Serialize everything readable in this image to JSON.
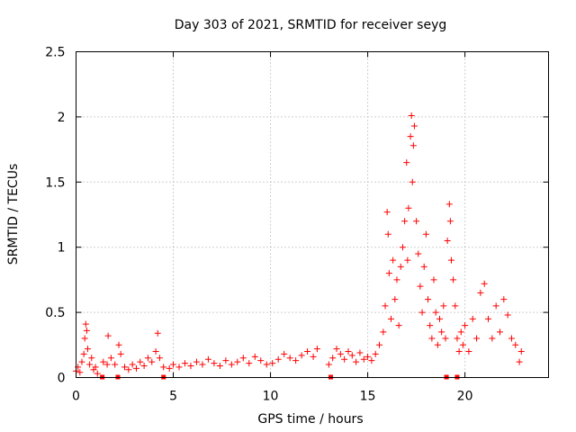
{
  "chart_data": {
    "type": "scatter",
    "title": "Day 303 of 2021, SRMTID for receiver seyg",
    "xlabel": "GPS time / hours",
    "ylabel": "SRMTID / TECUs",
    "xlim": [
      0,
      24.3
    ],
    "ylim": [
      0,
      2.5
    ],
    "xticks": [
      "0",
      "5",
      "10",
      "15",
      "20"
    ],
    "xtick_values": [
      0,
      5,
      10,
      15,
      20
    ],
    "yticks": [
      "0",
      "0.5",
      "1",
      "1.5",
      "2",
      "2.5"
    ],
    "ytick_values": [
      0,
      0.5,
      1,
      1.5,
      2,
      2.5
    ],
    "grid": true,
    "marker": "+",
    "marker_color": "#ff0000",
    "series": [
      {
        "name": "SRMTID",
        "points": [
          [
            0.0,
            0.05
          ],
          [
            0.1,
            0.08
          ],
          [
            0.2,
            0.04
          ],
          [
            0.3,
            0.12
          ],
          [
            0.4,
            0.18
          ],
          [
            0.45,
            0.3
          ],
          [
            0.5,
            0.41
          ],
          [
            0.55,
            0.36
          ],
          [
            0.6,
            0.22
          ],
          [
            0.7,
            0.1
          ],
          [
            0.8,
            0.15
          ],
          [
            0.9,
            0.06
          ],
          [
            1.0,
            0.08
          ],
          [
            1.1,
            0.03
          ],
          [
            1.4,
            0.12
          ],
          [
            1.6,
            0.1
          ],
          [
            1.65,
            0.32
          ],
          [
            1.8,
            0.15
          ],
          [
            2.0,
            0.1
          ],
          [
            2.2,
            0.25
          ],
          [
            2.3,
            0.18
          ],
          [
            2.5,
            0.08
          ],
          [
            2.7,
            0.06
          ],
          [
            2.9,
            0.1
          ],
          [
            3.1,
            0.07
          ],
          [
            3.3,
            0.12
          ],
          [
            3.5,
            0.09
          ],
          [
            3.7,
            0.15
          ],
          [
            3.9,
            0.12
          ],
          [
            4.1,
            0.2
          ],
          [
            4.2,
            0.34
          ],
          [
            4.3,
            0.15
          ],
          [
            4.5,
            0.08
          ],
          [
            4.8,
            0.07
          ],
          [
            5.0,
            0.1
          ],
          [
            5.3,
            0.08
          ],
          [
            5.6,
            0.11
          ],
          [
            5.9,
            0.09
          ],
          [
            6.2,
            0.12
          ],
          [
            6.5,
            0.1
          ],
          [
            6.8,
            0.14
          ],
          [
            7.1,
            0.11
          ],
          [
            7.4,
            0.09
          ],
          [
            7.7,
            0.13
          ],
          [
            8.0,
            0.1
          ],
          [
            8.3,
            0.12
          ],
          [
            8.6,
            0.15
          ],
          [
            8.9,
            0.11
          ],
          [
            9.2,
            0.16
          ],
          [
            9.5,
            0.13
          ],
          [
            9.8,
            0.1
          ],
          [
            10.1,
            0.11
          ],
          [
            10.4,
            0.14
          ],
          [
            10.7,
            0.18
          ],
          [
            11.0,
            0.15
          ],
          [
            11.3,
            0.13
          ],
          [
            11.6,
            0.17
          ],
          [
            11.9,
            0.2
          ],
          [
            12.2,
            0.16
          ],
          [
            12.4,
            0.22
          ],
          [
            13.0,
            0.1
          ],
          [
            13.2,
            0.15
          ],
          [
            13.4,
            0.22
          ],
          [
            13.6,
            0.18
          ],
          [
            13.8,
            0.14
          ],
          [
            14.0,
            0.2
          ],
          [
            14.2,
            0.17
          ],
          [
            14.4,
            0.12
          ],
          [
            14.6,
            0.19
          ],
          [
            14.8,
            0.14
          ],
          [
            15.0,
            0.16
          ],
          [
            15.2,
            0.13
          ],
          [
            15.4,
            0.18
          ],
          [
            15.6,
            0.25
          ],
          [
            15.8,
            0.35
          ],
          [
            15.9,
            0.55
          ],
          [
            16.0,
            1.27
          ],
          [
            16.05,
            1.1
          ],
          [
            16.1,
            0.8
          ],
          [
            16.2,
            0.45
          ],
          [
            16.3,
            0.9
          ],
          [
            16.4,
            0.6
          ],
          [
            16.5,
            0.75
          ],
          [
            16.6,
            0.4
          ],
          [
            16.7,
            0.85
          ],
          [
            16.8,
            1.0
          ],
          [
            16.9,
            1.2
          ],
          [
            17.0,
            1.65
          ],
          [
            17.05,
            0.9
          ],
          [
            17.1,
            1.3
          ],
          [
            17.2,
            1.85
          ],
          [
            17.25,
            2.01
          ],
          [
            17.3,
            1.5
          ],
          [
            17.35,
            1.78
          ],
          [
            17.4,
            1.93
          ],
          [
            17.5,
            1.2
          ],
          [
            17.6,
            0.95
          ],
          [
            17.7,
            0.7
          ],
          [
            17.8,
            0.5
          ],
          [
            17.9,
            0.85
          ],
          [
            18.0,
            1.1
          ],
          [
            18.1,
            0.6
          ],
          [
            18.2,
            0.4
          ],
          [
            18.3,
            0.3
          ],
          [
            18.4,
            0.75
          ],
          [
            18.5,
            0.5
          ],
          [
            18.6,
            0.25
          ],
          [
            18.7,
            0.45
          ],
          [
            18.8,
            0.35
          ],
          [
            18.9,
            0.55
          ],
          [
            19.0,
            0.3
          ],
          [
            19.1,
            1.05
          ],
          [
            19.2,
            1.33
          ],
          [
            19.25,
            1.2
          ],
          [
            19.3,
            0.9
          ],
          [
            19.4,
            0.75
          ],
          [
            19.5,
            0.55
          ],
          [
            19.6,
            0.3
          ],
          [
            19.7,
            0.2
          ],
          [
            19.8,
            0.35
          ],
          [
            19.9,
            0.25
          ],
          [
            20.0,
            0.4
          ],
          [
            20.2,
            0.2
          ],
          [
            20.4,
            0.45
          ],
          [
            20.6,
            0.3
          ],
          [
            20.8,
            0.65
          ],
          [
            21.0,
            0.72
          ],
          [
            21.2,
            0.45
          ],
          [
            21.4,
            0.3
          ],
          [
            21.6,
            0.55
          ],
          [
            21.8,
            0.35
          ],
          [
            22.0,
            0.6
          ],
          [
            22.2,
            0.48
          ],
          [
            22.4,
            0.3
          ],
          [
            22.6,
            0.25
          ],
          [
            22.8,
            0.12
          ],
          [
            22.9,
            0.2
          ]
        ]
      }
    ],
    "zero_marks_x": [
      1.35,
      2.15,
      4.5,
      13.1,
      19.05,
      19.6
    ]
  }
}
